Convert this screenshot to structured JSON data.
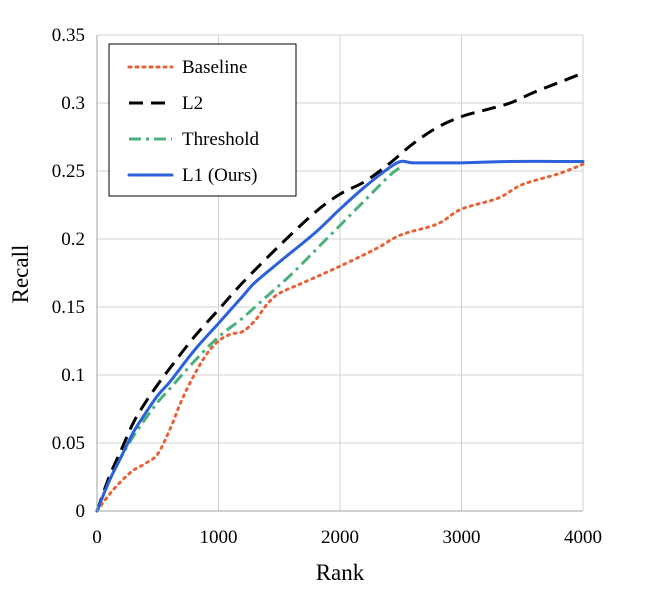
{
  "chart_data": {
    "type": "line",
    "title": "",
    "xlabel": "Rank",
    "ylabel": "Recall",
    "xlim": [
      0,
      4000
    ],
    "ylim": [
      0,
      0.35
    ],
    "x_ticks": [
      0,
      1000,
      2000,
      3000,
      4000
    ],
    "x_tick_labels": [
      "0",
      "1000",
      "2000",
      "3000",
      "4000"
    ],
    "y_ticks": [
      0,
      0.05,
      0.1,
      0.15,
      0.2,
      0.25,
      0.3,
      0.35
    ],
    "y_tick_labels": [
      "0",
      "0.05",
      "0.1",
      "0.15",
      "0.2",
      "0.25",
      "0.3",
      "0.35"
    ],
    "grid": true,
    "legend_position": "top-left",
    "series": [
      {
        "name": "Baseline",
        "style": "dotted",
        "color": "#E8623A",
        "x": [
          0,
          100,
          200,
          300,
          400,
          500,
          600,
          700,
          800,
          900,
          1000,
          1100,
          1200,
          1300,
          1400,
          1500,
          1700,
          2000,
          2300,
          2500,
          2800,
          3000,
          3300,
          3500,
          3800,
          4000
        ],
        "y": [
          0,
          0.012,
          0.022,
          0.03,
          0.035,
          0.042,
          0.06,
          0.082,
          0.1,
          0.115,
          0.125,
          0.13,
          0.132,
          0.14,
          0.152,
          0.16,
          0.168,
          0.18,
          0.193,
          0.203,
          0.211,
          0.222,
          0.23,
          0.24,
          0.248,
          0.255
        ]
      },
      {
        "name": "L2",
        "style": "dashed",
        "color": "#000000",
        "x": [
          0,
          100,
          200,
          300,
          400,
          500,
          600,
          800,
          1000,
          1200,
          1500,
          1800,
          2000,
          2200,
          2400,
          2600,
          2800,
          3000,
          3200,
          3400,
          3600,
          3800,
          4000
        ],
        "y": [
          0,
          0.025,
          0.045,
          0.065,
          0.08,
          0.093,
          0.105,
          0.128,
          0.148,
          0.168,
          0.195,
          0.22,
          0.233,
          0.242,
          0.255,
          0.27,
          0.282,
          0.29,
          0.295,
          0.3,
          0.308,
          0.315,
          0.322
        ]
      },
      {
        "name": "Threshold",
        "style": "dashdot",
        "color": "#4CAF7D",
        "x": [
          0,
          100,
          200,
          300,
          400,
          500,
          600,
          800,
          1000,
          1200,
          1400,
          1600,
          1800,
          2000,
          2200,
          2400,
          2500
        ],
        "y": [
          0,
          0.022,
          0.04,
          0.055,
          0.068,
          0.08,
          0.09,
          0.11,
          0.128,
          0.142,
          0.158,
          0.174,
          0.192,
          0.21,
          0.228,
          0.246,
          0.253
        ]
      },
      {
        "name": "L1 (Ours)",
        "style": "solid",
        "color": "#2B62D9",
        "x": [
          0,
          100,
          200,
          300,
          400,
          500,
          600,
          800,
          1000,
          1200,
          1300,
          1500,
          1800,
          2000,
          2200,
          2400,
          2500,
          2600,
          2800,
          3000,
          3400,
          3800,
          4000
        ],
        "y": [
          0,
          0.022,
          0.04,
          0.058,
          0.072,
          0.085,
          0.095,
          0.118,
          0.138,
          0.158,
          0.168,
          0.183,
          0.205,
          0.222,
          0.238,
          0.252,
          0.257,
          0.256,
          0.256,
          0.256,
          0.257,
          0.257,
          0.257
        ]
      }
    ]
  }
}
